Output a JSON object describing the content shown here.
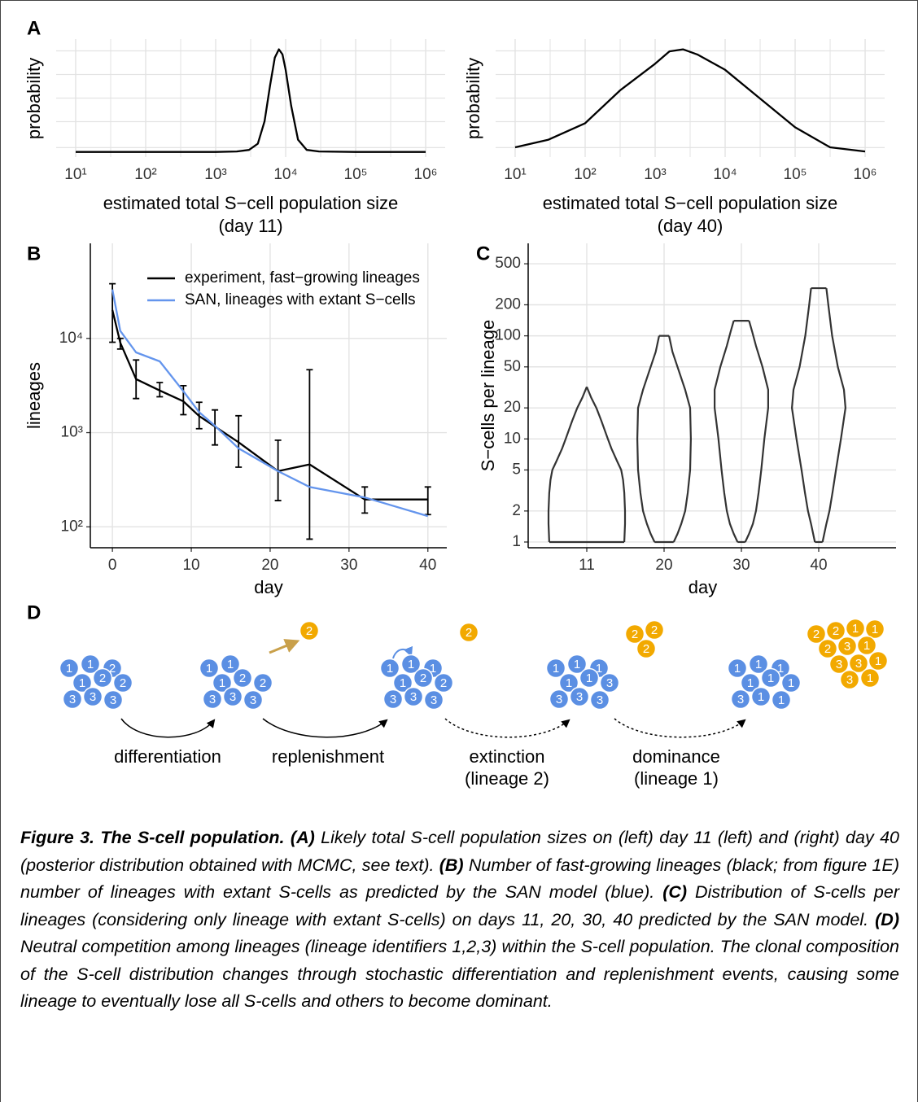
{
  "panels": [
    "A",
    "B",
    "C",
    "D"
  ],
  "chart_data": [
    {
      "type": "line",
      "xscale": "log",
      "xlim": [
        5.26,
        1900000
      ],
      "ylim": [
        -0.05,
        1.1
      ],
      "xticks": [
        {
          "value": 10,
          "label": "10¹"
        },
        {
          "value": 100,
          "label": "10²"
        },
        {
          "value": 1000,
          "label": "10³"
        },
        {
          "value": 10000,
          "label": "10⁴"
        },
        {
          "value": 100000,
          "label": "10⁵"
        },
        {
          "value": 1000000,
          "label": "10⁶"
        }
      ],
      "grid": true,
      "ylabel": "probability",
      "xlabel": [
        "estimated total S−cell population size",
        "(day 11)"
      ],
      "series": [
        {
          "color": "#000000",
          "x": [
            10,
            100,
            1000,
            2000,
            3000,
            4000,
            5000,
            6000,
            7000,
            8000,
            9000,
            10000,
            12000,
            15000,
            20000,
            30000,
            100000,
            1000000
          ],
          "values": [
            0,
            0,
            0,
            0.005,
            0.02,
            0.08,
            0.3,
            0.65,
            0.92,
            1,
            0.95,
            0.8,
            0.45,
            0.12,
            0.02,
            0.005,
            0,
            0
          ]
        }
      ]
    },
    {
      "type": "line",
      "xscale": "log",
      "xlim": [
        5.26,
        1900000
      ],
      "ylim": [
        -0.05,
        1.1
      ],
      "xticks": [
        {
          "value": 10,
          "label": "10¹"
        },
        {
          "value": 100,
          "label": "10²"
        },
        {
          "value": 1000,
          "label": "10³"
        },
        {
          "value": 10000,
          "label": "10⁴"
        },
        {
          "value": 100000,
          "label": "10⁵"
        },
        {
          "value": 1000000,
          "label": "10⁶"
        }
      ],
      "grid": true,
      "ylabel": "probability",
      "xlabel": [
        "estimated total S−cell population size",
        "(day 40)"
      ],
      "series": [
        {
          "color": "#000000",
          "x": [
            10,
            30,
            100,
            316,
            1000,
            1600,
            2500,
            4000,
            10000,
            31600,
            100000,
            316000,
            1000000
          ],
          "values": [
            0.045,
            0.12,
            0.28,
            0.6,
            0.86,
            0.98,
            1,
            0.95,
            0.8,
            0.52,
            0.24,
            0.045,
            0.005
          ]
        }
      ]
    },
    {
      "type": "line",
      "yscale": "log",
      "xlim": [
        -2.8,
        42.4
      ],
      "ylim": [
        60,
        102000
      ],
      "xticks": [
        0,
        10,
        20,
        30,
        40
      ],
      "yticks": [
        {
          "value": 100,
          "label": "10²"
        },
        {
          "value": 1000,
          "label": "10³"
        },
        {
          "value": 10000,
          "label": "10⁴"
        }
      ],
      "grid": true,
      "xlabel": "day",
      "ylabel": "lineages",
      "legend": "top-right",
      "series": [
        {
          "name": "experiment, fast−growing lineages",
          "color": "#000000",
          "x": [
            0,
            1,
            3,
            6,
            9,
            11,
            13,
            16,
            21,
            25,
            32,
            40
          ],
          "values": [
            20000,
            9000,
            3700,
            2800,
            2150,
            1500,
            1160,
            790,
            390,
            460,
            195,
            195
          ],
          "lower": [
            9100,
            7700,
            2300,
            2400,
            1550,
            1100,
            740,
            430,
            190,
            74,
            140,
            135
          ],
          "upper": [
            38000,
            10000,
            5900,
            3400,
            3150,
            2100,
            1740,
            1510,
            830,
            4650,
            265,
            265
          ]
        },
        {
          "name": "SAN, lineages with extant S−cells",
          "color": "#6495ed",
          "x": [
            0,
            1,
            3,
            6,
            9,
            11,
            13,
            16,
            21,
            25,
            32,
            40
          ],
          "values": [
            33000,
            12000,
            7100,
            5700,
            2750,
            1650,
            1180,
            680,
            390,
            265,
            205,
            130
          ]
        }
      ]
    },
    {
      "type": "violin",
      "yscale": "log",
      "ylim": [
        0.88,
        789
      ],
      "categories": [
        "11",
        "20",
        "30",
        "40"
      ],
      "yticks": [
        1,
        2,
        5,
        10,
        20,
        50,
        100,
        200,
        500
      ],
      "grid": true,
      "xlabel": "day",
      "ylabel": "S−cells per lineage",
      "color": "#333333",
      "violins": [
        {
          "y": [
            1,
            1.5,
            2,
            3,
            4,
            5,
            6,
            8,
            10,
            15,
            20,
            25,
            32
          ],
          "density": [
            0.98,
            1,
            1,
            0.98,
            0.95,
            0.9,
            0.8,
            0.65,
            0.55,
            0.38,
            0.25,
            0.12,
            0
          ]
        },
        {
          "y": [
            1,
            1.2,
            1.5,
            2,
            3,
            5,
            10,
            20,
            30,
            50,
            70,
            100
          ],
          "density": [
            0.25,
            0.35,
            0.45,
            0.55,
            0.62,
            0.68,
            0.7,
            0.68,
            0.55,
            0.35,
            0.22,
            0.13
          ]
        },
        {
          "y": [
            1,
            1.2,
            1.5,
            2,
            3,
            5,
            10,
            20,
            30,
            50,
            80,
            110,
            140
          ],
          "density": [
            0.1,
            0.2,
            0.3,
            0.38,
            0.45,
            0.52,
            0.6,
            0.7,
            0.7,
            0.55,
            0.38,
            0.28,
            0.2
          ]
        },
        {
          "y": [
            1,
            1.5,
            2,
            3,
            5,
            10,
            20,
            30,
            50,
            100,
            200,
            290
          ],
          "density": [
            0.1,
            0.2,
            0.28,
            0.36,
            0.45,
            0.58,
            0.7,
            0.66,
            0.5,
            0.35,
            0.25,
            0.2
          ]
        }
      ]
    }
  ],
  "diagram": {
    "groups": [
      {
        "color": "#5b8fe3",
        "labels": [
          "1",
          "1",
          "2",
          "1",
          "2",
          "2",
          "3",
          "3",
          "3"
        ]
      },
      {
        "color": "#5b8fe3",
        "labels": [
          "1",
          "1",
          "1",
          "2",
          "2",
          "3",
          "3",
          "3"
        ]
      },
      {
        "color": "#5b8fe3",
        "labels": [
          "1",
          "1",
          "1",
          "1",
          "2",
          "2",
          "3",
          "3",
          "3"
        ]
      },
      {
        "color": "#5b8fe3",
        "labels": [
          "1",
          "1",
          "1",
          "1",
          "1",
          "3",
          "3",
          "3",
          "3"
        ]
      },
      {
        "color": "#5b8fe3",
        "labels": [
          "1",
          "1",
          "1",
          "1",
          "1",
          "1",
          "3",
          "1",
          "1"
        ]
      },
      {
        "color": "#f2a900",
        "labels": [
          "2"
        ]
      },
      {
        "color": "#f2a900",
        "labels": [
          "2"
        ]
      },
      {
        "color": "#f2a900",
        "labels": [
          "2",
          "2",
          "2"
        ]
      },
      {
        "color": "#f2a900",
        "labels": [
          "2",
          "2",
          "1",
          "1",
          "2",
          "3",
          "1",
          "3",
          "3",
          "1",
          "3",
          "1"
        ]
      }
    ],
    "steps": [
      [
        "differentiation"
      ],
      [
        "replenishment"
      ],
      [
        "extinction",
        "(lineage 2)"
      ],
      [
        "dominance",
        "(lineage 1)"
      ]
    ]
  },
  "caption": {
    "title": "Figure 3. The S-cell population.",
    "parts": [
      {
        "label": "(A)",
        "text": "Likely total S-cell population sizes on (left) day 11 (left) and (right) day 40 (posterior distribution obtained with MCMC, see text)."
      },
      {
        "label": "(B)",
        "text": "Number of fast-growing lineages (black; from figure 1E) number of lineages with extant S-cells as predicted by the SAN model (blue)."
      },
      {
        "label": "(C)",
        "text": "Distribution of S-cells per lineages (considering only lineage with extant S-cells) on days 11, 20, 30, 40 predicted by the SAN model."
      },
      {
        "label": "(D)",
        "text": "Neutral competition among lineages (lineage identifiers 1,2,3) within the S-cell population. The clonal composition of the S-cell distribution changes through stochastic differentiation and replenishment events, causing some lineage to eventually lose all S-cells and others to become dominant."
      }
    ]
  }
}
